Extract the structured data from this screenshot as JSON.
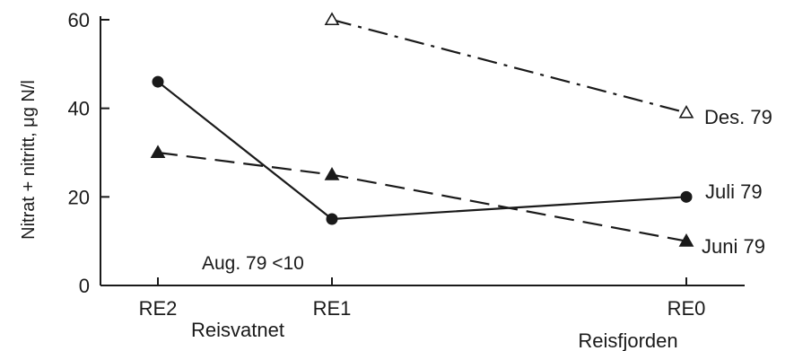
{
  "chart_data": {
    "type": "line",
    "title": "",
    "ylabel": "Nitrat + nitritt, μg N/l",
    "xlabel": "",
    "ylim": [
      0,
      60
    ],
    "yticks": [
      0,
      20,
      40,
      60
    ],
    "ytick_labels": [
      "0",
      "20",
      "40",
      "60"
    ],
    "categories": [
      "RE2",
      "RE1",
      "RE0"
    ],
    "x_positions": [
      0,
      1,
      3
    ],
    "place_labels": [
      {
        "under": "RE2",
        "text": "Reisvatnet"
      },
      {
        "under": "RE0",
        "text": "Reisfjorden"
      }
    ],
    "annotation": "Aug. 79  <10",
    "grid": false,
    "series": [
      {
        "name": "Des. 79",
        "values": [
          null,
          60,
          39
        ],
        "line_style": "dash-dot",
        "marker": "open-triangle"
      },
      {
        "name": "Juli 79",
        "values": [
          46,
          15,
          20
        ],
        "line_style": "solid",
        "marker": "filled-circle"
      },
      {
        "name": "Juni 79",
        "values": [
          30,
          25,
          10
        ],
        "line_style": "dashed",
        "marker": "filled-triangle"
      }
    ]
  }
}
